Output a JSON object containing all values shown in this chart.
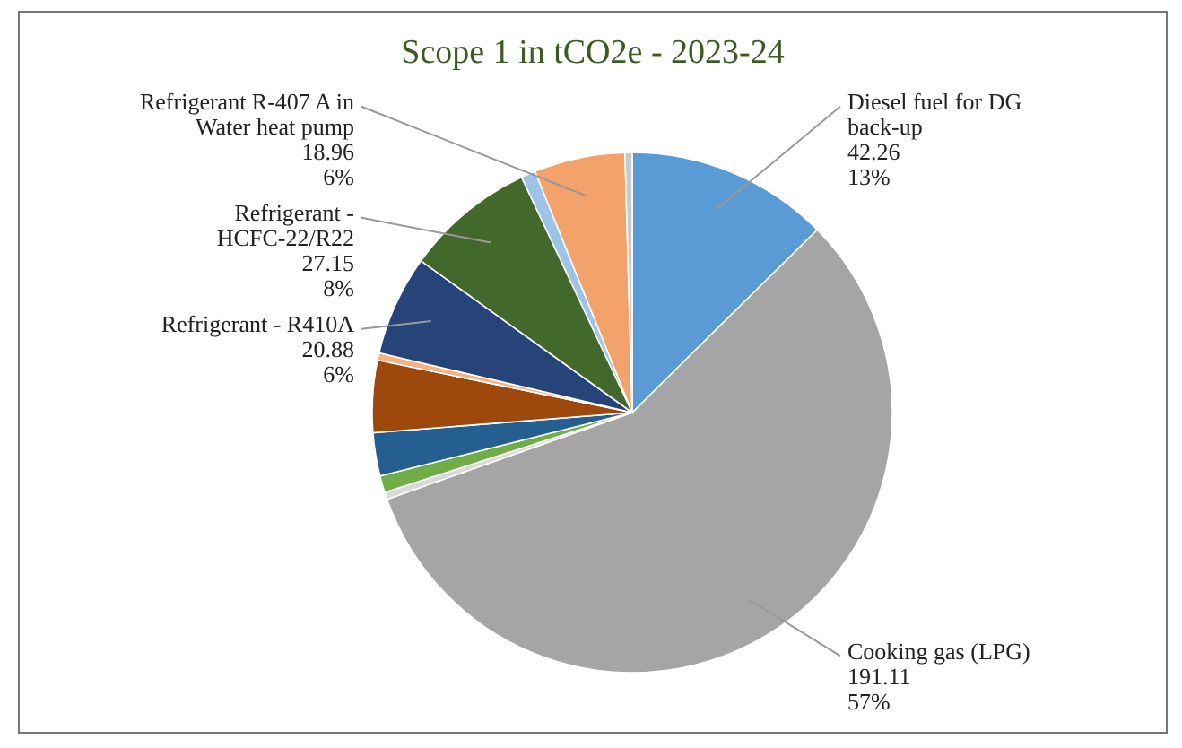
{
  "chart_data": {
    "type": "pie",
    "title": "Scope 1 in tCO2e - 2023-24",
    "categories": [
      "Diesel fuel for DG back-up",
      "Cooking gas (LPG)",
      null,
      null,
      null,
      null,
      null,
      "Refrigerant - R410A",
      "Refrigerant - HCFC-22/R22",
      null,
      "Refrigerant R-407 A in Water heat pump",
      null
    ],
    "values": [
      42.26,
      191.11,
      1.5,
      3.5,
      9,
      15,
      1.5,
      20.88,
      27.15,
      3,
      18.96,
      1.5
    ],
    "colors": [
      "#5b9bd5",
      "#a5a5a5",
      "#d9d9d9",
      "#70ad47",
      "#255e91",
      "#9e480e",
      "#f4b183",
      "#264478",
      "#43682b",
      "#9dc3e6",
      "#f4a26b",
      "#c9c9c9"
    ],
    "value_labels": [
      "42.26\n13%",
      "191.11\n57%",
      null,
      null,
      null,
      null,
      null,
      "20.88\n6%",
      "27.15\n8%",
      null,
      "18.96\n6%",
      null
    ]
  }
}
